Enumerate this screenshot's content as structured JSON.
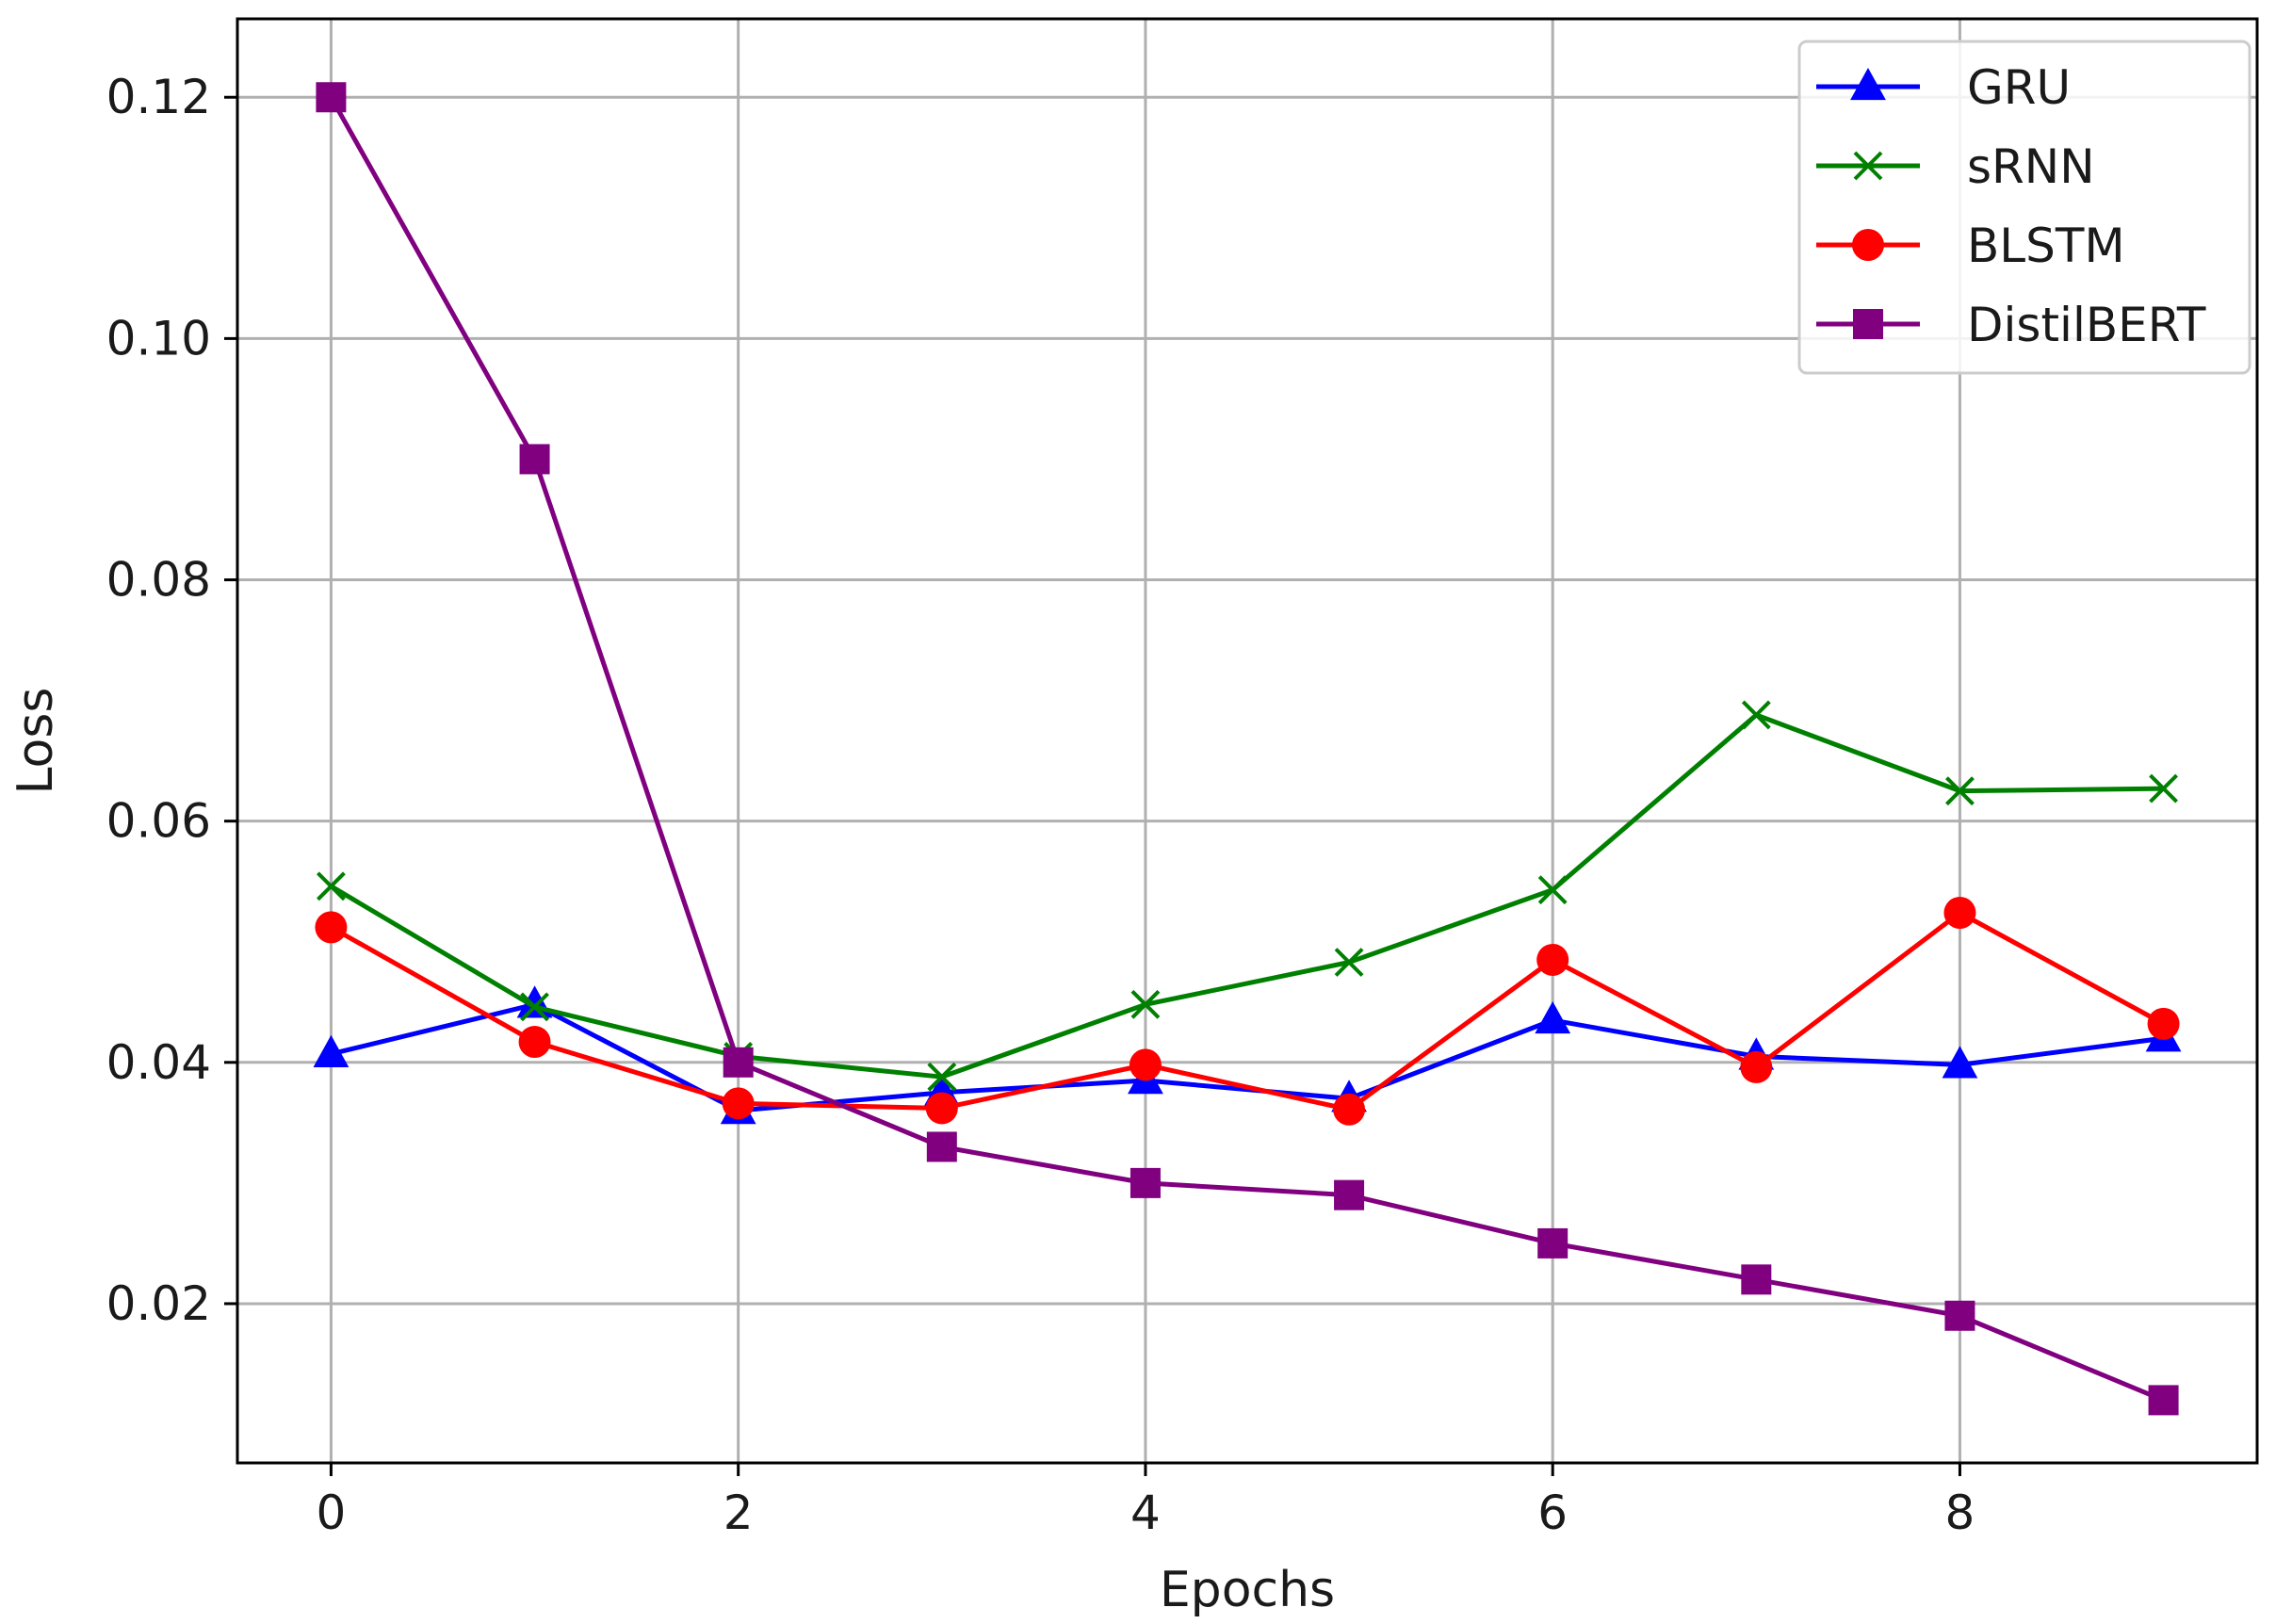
{
  "chart_data": {
    "type": "line",
    "title": "",
    "xlabel": "Epochs",
    "ylabel": "Loss",
    "xlim": [
      -0.46,
      9.46
    ],
    "ylim": [
      0.0068,
      0.1265
    ],
    "xticks": [
      0,
      2,
      4,
      6,
      8
    ],
    "xtick_labels": [
      "0",
      "2",
      "4",
      "6",
      "8"
    ],
    "yticks": [
      0.02,
      0.04,
      0.06,
      0.08,
      0.1,
      0.12
    ],
    "ytick_labels": [
      "0.02",
      "0.04",
      "0.06",
      "0.08",
      "0.10",
      "0.12"
    ],
    "grid": true,
    "legend_position": "top-right",
    "x": [
      0,
      1,
      2,
      3,
      4,
      5,
      6,
      7,
      8,
      9
    ],
    "series": [
      {
        "name": "GRU",
        "color": "#0000ff",
        "marker": "triangle",
        "values": [
          0.0407,
          0.0448,
          0.036,
          0.0375,
          0.0385,
          0.037,
          0.0435,
          0.0405,
          0.0398,
          0.042
        ]
      },
      {
        "name": "sRNN",
        "color": "#008000",
        "marker": "x",
        "values": [
          0.0546,
          0.0446,
          0.0405,
          0.0388,
          0.0448,
          0.0483,
          0.0543,
          0.0688,
          0.0625,
          0.0627
        ]
      },
      {
        "name": "BLSTM",
        "color": "#ff0000",
        "marker": "circle",
        "values": [
          0.0512,
          0.0417,
          0.0366,
          0.0362,
          0.0398,
          0.0361,
          0.0485,
          0.0396,
          0.0524,
          0.0432
        ]
      },
      {
        "name": "DistilBERT",
        "color": "#800080",
        "marker": "square",
        "values": [
          0.12,
          0.09,
          0.04,
          0.033,
          0.03,
          0.029,
          0.025,
          0.022,
          0.019,
          0.012
        ]
      }
    ]
  }
}
